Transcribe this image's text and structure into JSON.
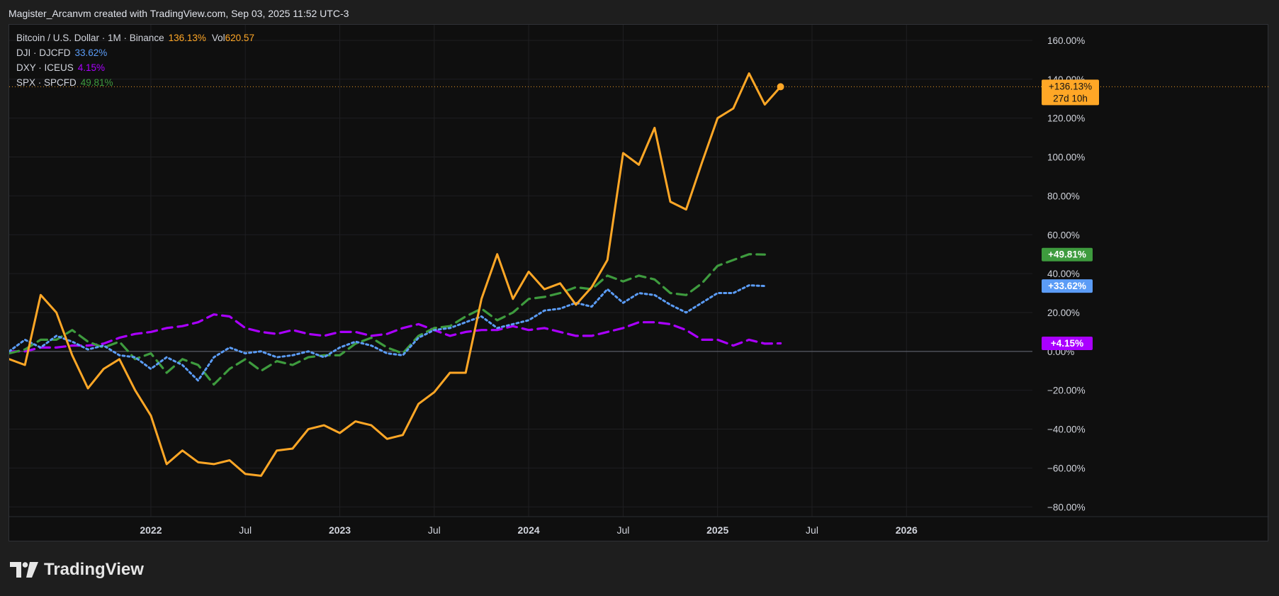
{
  "header": {
    "caption": "Magister_Arcanvm created with TradingView.com, Sep 03, 2025 11:52 UTC-3"
  },
  "brand": {
    "name": "TradingView",
    "logo_icon": "tradingview-logo-icon"
  },
  "legend": {
    "items": [
      {
        "label": "Bitcoin / U.S. Dollar · 1M · Binance",
        "value": "136.13%",
        "vol_label": "Vol",
        "vol_value": "620.57",
        "color": "#ffa726"
      },
      {
        "label": "DJI · DJCFD",
        "value": "33.62%",
        "color": "#5b9cf6"
      },
      {
        "label": "DXY · ICEUS",
        "value": "4.15%",
        "color": "#aa00ff"
      },
      {
        "label": "SPX · SPCFD",
        "value": "49.81%",
        "color": "#3e9b3e"
      }
    ]
  },
  "chart_data": {
    "type": "line",
    "x_axis": {
      "type": "time",
      "range": [
        "2021-04",
        "2026-09"
      ],
      "ticks": [
        {
          "x": "2022-01",
          "label": "2022"
        },
        {
          "x": "2022-07",
          "label": "Jul"
        },
        {
          "x": "2023-01",
          "label": "2023"
        },
        {
          "x": "2023-07",
          "label": "Jul"
        },
        {
          "x": "2024-01",
          "label": "2024"
        },
        {
          "x": "2024-07",
          "label": "Jul"
        },
        {
          "x": "2025-01",
          "label": "2025"
        },
        {
          "x": "2025-07",
          "label": "Jul"
        },
        {
          "x": "2026-01",
          "label": "2026"
        }
      ]
    },
    "y_axis": {
      "unit": "%",
      "range": [
        -85,
        168
      ],
      "ticks": [
        "160.00%",
        "140.00%",
        "120.00%",
        "100.00%",
        "80.00%",
        "60.00%",
        "40.00%",
        "20.00%",
        "0.00%",
        "−20.00%",
        "−40.00%",
        "−60.00%",
        "−80.00%"
      ],
      "tick_values": [
        160,
        140,
        120,
        100,
        80,
        60,
        40,
        20,
        0,
        -20,
        -40,
        -60,
        -80
      ]
    },
    "grid": true,
    "zero_line": true,
    "price_line": {
      "value": 136.13,
      "color": "#ffa726"
    },
    "series": [
      {
        "name": "Bitcoin / U.S. Dollar",
        "color": "#ffa726",
        "style": "solid",
        "start": "2021-04",
        "values": [
          -4,
          -7,
          29,
          20,
          -2,
          -19,
          -9,
          -4,
          -20,
          -33,
          -58,
          -51,
          -57,
          -58,
          -56,
          -63,
          -64,
          -51,
          -50,
          -40,
          -38,
          -42,
          -36,
          -38,
          -45,
          -43,
          -27,
          -21,
          -11,
          -11,
          27,
          50,
          27,
          41,
          32,
          35,
          24,
          33,
          47,
          102,
          96,
          115,
          77,
          73,
          97,
          120,
          125,
          143,
          127,
          136.13
        ],
        "end_label": "+136.13%",
        "end_sublabel": "27d 10h"
      },
      {
        "name": "DJI · DJCFD",
        "color": "#5b9cf6",
        "style": "dotted",
        "start": "2021-04",
        "values": [
          0,
          6,
          2,
          8,
          5,
          1,
          3,
          -2,
          -3,
          -9,
          -3,
          -7,
          -15,
          -3,
          2,
          -1,
          0,
          -3,
          -2,
          0,
          -3,
          2,
          5,
          3,
          -1,
          -2,
          7,
          11,
          12,
          15,
          18,
          12,
          14,
          16,
          21,
          22,
          25,
          23,
          32,
          25,
          30,
          29,
          24,
          20,
          25,
          30,
          30,
          34,
          33.62
        ],
        "end_label": "+33.62%"
      },
      {
        "name": "DXY · ICEUS",
        "color": "#aa00ff",
        "style": "dashed",
        "start": "2021-04",
        "values": [
          0,
          0,
          2,
          2,
          3,
          3,
          4,
          7,
          9,
          10,
          12,
          13,
          15,
          19,
          18,
          12,
          10,
          9,
          11,
          9,
          8,
          10,
          10,
          8,
          9,
          12,
          14,
          11,
          8,
          10,
          11,
          11,
          13,
          11,
          12,
          10,
          8,
          8,
          10,
          12,
          15,
          15,
          14,
          11,
          6,
          6,
          3,
          6,
          4,
          4.15
        ],
        "end_label": "+4.15%"
      },
      {
        "name": "SPX · SPCFD",
        "color": "#3e9b3e",
        "style": "dashed",
        "start": "2021-04",
        "values": [
          -1,
          1,
          6,
          6,
          11,
          5,
          2,
          5,
          -4,
          -1,
          -11,
          -4,
          -7,
          -17,
          -9,
          -4,
          -10,
          -5,
          -7,
          -3,
          -2,
          -2,
          4,
          7,
          2,
          -1,
          8,
          12,
          13,
          18,
          22,
          16,
          20,
          27,
          28,
          30,
          33,
          32,
          39,
          36,
          39,
          37,
          30,
          29,
          35,
          44,
          47,
          50,
          49.81
        ],
        "end_label": "+49.81%"
      }
    ]
  }
}
